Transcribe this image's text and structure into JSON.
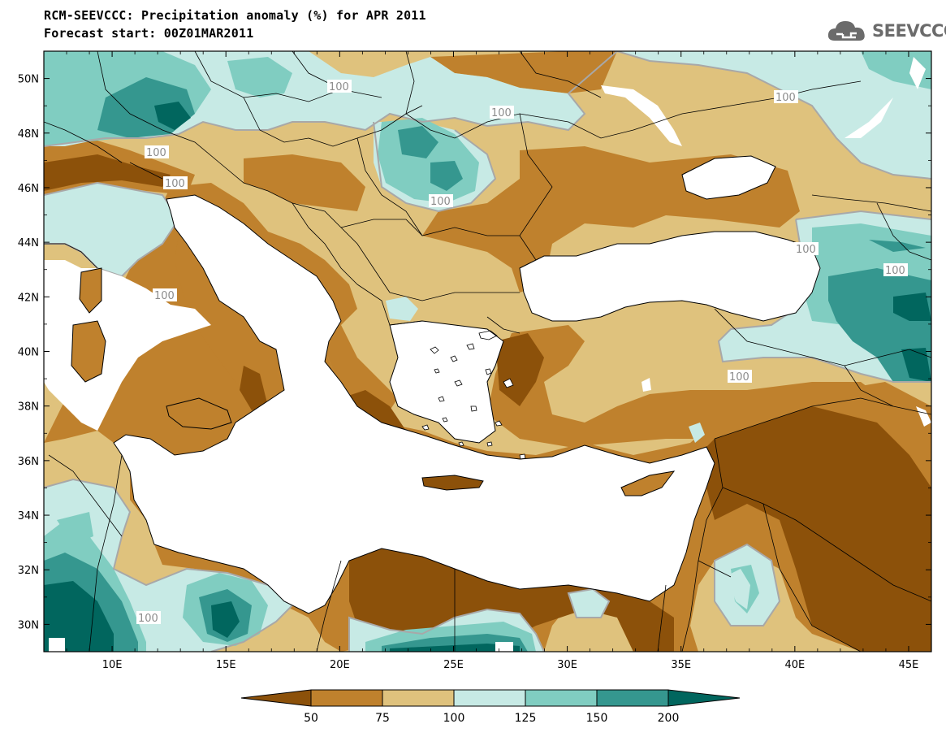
{
  "header": {
    "title_line1": "RCM-SEEVCCC: Precipitation anomaly (%) for APR 2011",
    "title_line2": "Forecast start: 00Z01MAR2011",
    "logo_text": "SEEVCCC"
  },
  "map": {
    "lon_range": [
      7,
      46
    ],
    "lat_range": [
      29,
      51
    ],
    "lon_ticks": [
      "10E",
      "15E",
      "20E",
      "25E",
      "30E",
      "35E",
      "40E",
      "45E"
    ],
    "lat_ticks": [
      "50N",
      "48N",
      "46N",
      "44N",
      "42N",
      "40N",
      "38N",
      "36N",
      "34N",
      "32N",
      "30N"
    ],
    "contour_labels": [
      "100",
      "100",
      "100",
      "100",
      "100",
      "100",
      "100",
      "100",
      "100",
      "100"
    ]
  },
  "colorbar": {
    "labels": [
      "50",
      "75",
      "100",
      "125",
      "150",
      "200"
    ],
    "colors": {
      "below_50": "#8c510a",
      "c50_75": "#bf812d",
      "c75_100": "#dfc27d",
      "c100_125": "#c7eae5",
      "c125_150": "#80cdc1",
      "c150_200": "#35978f",
      "above_200": "#01665e"
    }
  },
  "colors": {
    "sea": "#ffffff",
    "border": "#000000",
    "contour": "#a8a8a8"
  }
}
